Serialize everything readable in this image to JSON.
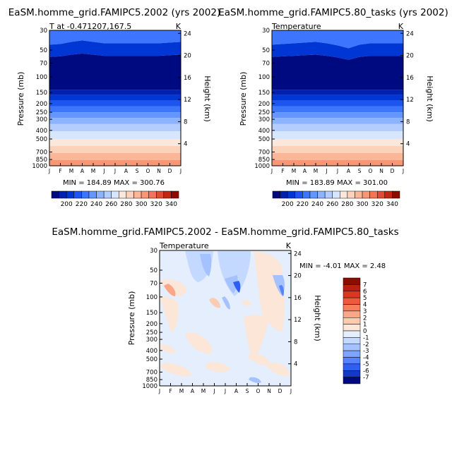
{
  "chart_data": [
    {
      "type": "heatmap",
      "title": "EaSM.homme_grid.FAMIPC5.2002 (yrs 2002)",
      "subtitle_left": "T at  -0.471207,167.5",
      "subtitle_right": "K",
      "xlabel": "",
      "ylabel": "Pressure (mb)",
      "ylabel_right": "Height (km)",
      "x_ticks": [
        "J",
        "F",
        "M",
        "A",
        "M",
        "J",
        "J",
        "A",
        "S",
        "O",
        "N",
        "D",
        "J"
      ],
      "y_ticks": [
        "30",
        "50",
        "70",
        "100",
        "150",
        "200",
        "250",
        "300",
        "400",
        "500",
        "700",
        "850",
        "1000"
      ],
      "y_ticks_right": [
        "24",
        "20",
        "16",
        "12",
        "8",
        "4"
      ],
      "min_max_text": "MIN = 184.89  MAX = 300.76",
      "min": 184.89,
      "max": 300.76,
      "colorbar_labels": [
        "200",
        "220",
        "240",
        "260",
        "280",
        "300",
        "320",
        "340"
      ],
      "ylim": [
        1000,
        30
      ]
    },
    {
      "type": "heatmap",
      "title": "EaSM.homme_grid.FAMIPC5.80_tasks (yrs 2002)",
      "subtitle_left": "Temperature",
      "subtitle_right": "K",
      "xlabel": "",
      "ylabel": "Pressure (mb)",
      "ylabel_right": "Height (km)",
      "x_ticks": [
        "J",
        "F",
        "M",
        "A",
        "M",
        "J",
        "J",
        "A",
        "S",
        "O",
        "N",
        "D",
        "J"
      ],
      "y_ticks": [
        "30",
        "50",
        "70",
        "100",
        "150",
        "200",
        "250",
        "300",
        "400",
        "500",
        "700",
        "850",
        "1000"
      ],
      "y_ticks_right": [
        "24",
        "20",
        "16",
        "12",
        "8",
        "4"
      ],
      "min_max_text": "MIN = 183.89  MAX = 301.00",
      "min": 183.89,
      "max": 301.0,
      "colorbar_labels": [
        "200",
        "220",
        "240",
        "260",
        "280",
        "300",
        "320",
        "340"
      ],
      "ylim": [
        1000,
        30
      ]
    },
    {
      "type": "heatmap",
      "title": "EaSM.homme_grid.FAMIPC5.2002 - EaSM.homme_grid.FAMIPC5.80_tasks",
      "subtitle_left": "Temperature",
      "subtitle_right": "K",
      "xlabel": "",
      "ylabel": "Pressure (mb)",
      "ylabel_right": "Height (km)",
      "x_ticks": [
        "J",
        "F",
        "M",
        "A",
        "M",
        "J",
        "J",
        "A",
        "S",
        "O",
        "N",
        "D",
        "J"
      ],
      "y_ticks": [
        "30",
        "50",
        "70",
        "100",
        "150",
        "200",
        "250",
        "300",
        "400",
        "500",
        "700",
        "850",
        "1000"
      ],
      "y_ticks_right": [
        "24",
        "20",
        "16",
        "12",
        "8",
        "4"
      ],
      "min_max_text": "MIN =   -4.01  MAX =    2.48",
      "min": -4.01,
      "max": 2.48,
      "colorbar_labels": [
        "7",
        "6",
        "5",
        "4",
        "3",
        "2",
        "1",
        "0",
        "-1",
        "-2",
        "-3",
        "-4",
        "-5",
        "-6",
        "-7"
      ],
      "ylim": [
        1000,
        30
      ]
    }
  ],
  "colors": {
    "temp_scale": [
      "#000a80",
      "#0020b0",
      "#0036d4",
      "#1c55f0",
      "#3d75ff",
      "#6595ff",
      "#8cb3ff",
      "#b3cdff",
      "#d7e6ff",
      "#fbe8dc",
      "#fdd2bb",
      "#fbb698",
      "#f89676",
      "#f37458",
      "#e14a33",
      "#c02814",
      "#8c0c00"
    ],
    "diff_scale": [
      "#8c0c00",
      "#b82010",
      "#d93820",
      "#f05a3a",
      "#f87e5c",
      "#fba787",
      "#fbcbb2",
      "#fbe6d8",
      "#e4eefd",
      "#c4d9ff",
      "#a3c2ff",
      "#7da5ff",
      "#5583ff",
      "#2e5ff0",
      "#1438c8",
      "#000a80"
    ]
  }
}
